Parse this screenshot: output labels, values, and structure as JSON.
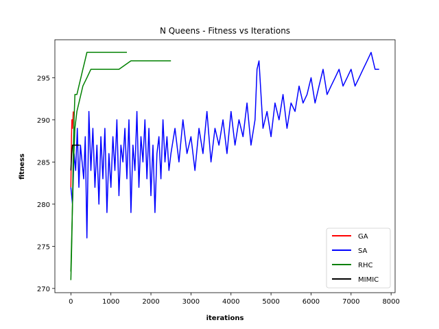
{
  "chart_data": {
    "type": "line",
    "title": "N Queens - Fitness vs Iterations",
    "xlabel": "iterations",
    "ylabel": "fitness",
    "xlim": [
      -400,
      8100
    ],
    "ylim": [
      269.5,
      299.5
    ],
    "xticks": [
      0,
      1000,
      2000,
      3000,
      4000,
      5000,
      6000,
      7000,
      8000
    ],
    "yticks": [
      270,
      275,
      280,
      285,
      290,
      295
    ],
    "grid": false,
    "legend_position": "lower-right",
    "series": [
      {
        "name": "GA",
        "color": "#ff0000",
        "x": [
          0,
          5,
          10,
          15,
          20,
          25,
          30,
          40,
          50,
          60
        ],
        "y": [
          282,
          284,
          286,
          288,
          289,
          290,
          290,
          289,
          290,
          291
        ]
      },
      {
        "name": "SA",
        "color": "#0000ff",
        "x": [
          0,
          40,
          80,
          120,
          160,
          200,
          240,
          280,
          320,
          360,
          400,
          450,
          500,
          550,
          600,
          650,
          700,
          750,
          800,
          850,
          900,
          950,
          1000,
          1050,
          1100,
          1150,
          1200,
          1250,
          1300,
          1350,
          1400,
          1450,
          1500,
          1550,
          1600,
          1650,
          1700,
          1750,
          1800,
          1850,
          1900,
          1950,
          2000,
          2050,
          2100,
          2150,
          2200,
          2250,
          2300,
          2350,
          2400,
          2450,
          2500,
          2600,
          2700,
          2800,
          2900,
          3000,
          3100,
          3200,
          3300,
          3400,
          3500,
          3600,
          3700,
          3800,
          3900,
          4000,
          4100,
          4200,
          4300,
          4400,
          4500,
          4600,
          4650,
          4700,
          4750,
          4800,
          4900,
          5000,
          5100,
          5200,
          5300,
          5400,
          5500,
          5600,
          5700,
          5800,
          5900,
          6000,
          6100,
          6200,
          6300,
          6400,
          6500,
          6600,
          6700,
          6800,
          6900,
          7000,
          7100,
          7200,
          7300,
          7400,
          7500,
          7600,
          7700
        ],
        "y": [
          282,
          280,
          286,
          284,
          289,
          282,
          287,
          285,
          283,
          288,
          276,
          291,
          284,
          289,
          282,
          287,
          280,
          288,
          283,
          289,
          279,
          286,
          282,
          288,
          284,
          290,
          281,
          287,
          285,
          289,
          283,
          290,
          279,
          287,
          284,
          291,
          282,
          288,
          285,
          290,
          283,
          289,
          281,
          287,
          279,
          286,
          288,
          283,
          290,
          285,
          288,
          284,
          286,
          289,
          285,
          290,
          286,
          288,
          284,
          289,
          286,
          291,
          285,
          289,
          287,
          290,
          286,
          291,
          287,
          290,
          288,
          292,
          287,
          290,
          296,
          297,
          293,
          289,
          291,
          288,
          292,
          290,
          293,
          289,
          292,
          291,
          294,
          292,
          293,
          295,
          292,
          294,
          296,
          293,
          294,
          295,
          296,
          294,
          295,
          296,
          294,
          295,
          296,
          297,
          298,
          296,
          296
        ]
      },
      {
        "name": "RHC",
        "color": "#008000",
        "x": [
          0,
          20,
          40,
          60,
          80,
          100,
          150,
          200,
          250,
          300,
          350,
          400,
          500,
          600,
          800,
          1000,
          1200,
          1400
        ],
        "y": [
          271,
          275,
          280,
          286,
          290,
          293,
          293,
          294,
          295,
          296,
          297,
          298,
          298,
          298,
          298,
          298,
          298,
          298
        ]
      },
      {
        "name": "RHC",
        "color": "#008000",
        "x": [
          0,
          30,
          60,
          100,
          150,
          200,
          300,
          400,
          500,
          600,
          800,
          1000,
          1200,
          1500,
          2000,
          2500
        ],
        "y": [
          272,
          278,
          284,
          289,
          291,
          292,
          294,
          295,
          296,
          296,
          296,
          296,
          296,
          297,
          297,
          297
        ]
      },
      {
        "name": "MIMIC",
        "color": "#000000",
        "x": [
          0,
          10,
          20,
          40,
          60,
          80,
          100,
          140,
          180,
          220
        ],
        "y": [
          284,
          285,
          286,
          287,
          287,
          287,
          287,
          287,
          287,
          287
        ]
      }
    ],
    "legend": [
      "GA",
      "SA",
      "RHC",
      "MIMIC"
    ]
  }
}
